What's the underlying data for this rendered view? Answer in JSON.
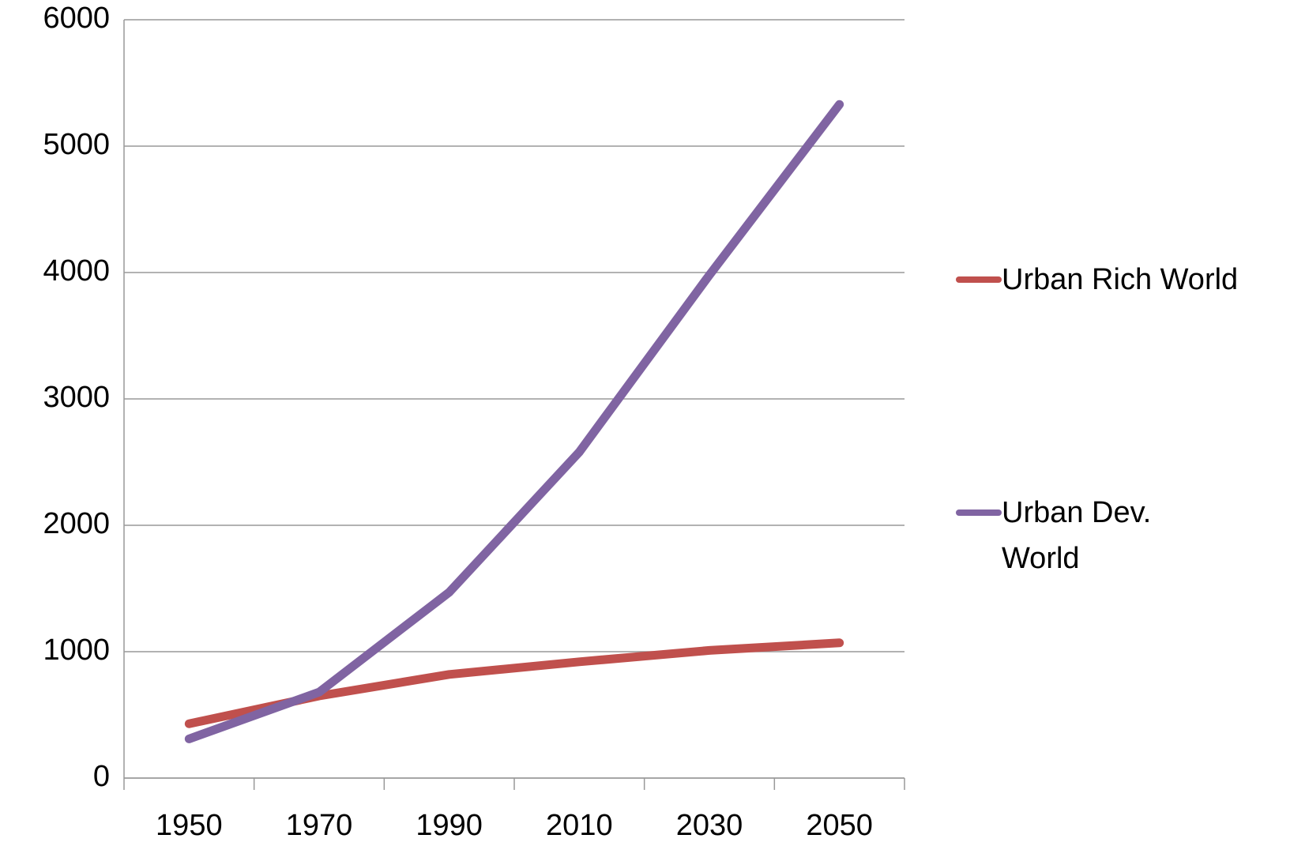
{
  "chart_data": {
    "type": "line",
    "categories": [
      "1950",
      "1970",
      "1990",
      "2010",
      "2030",
      "2050"
    ],
    "series": [
      {
        "name": "Urban Rich World",
        "color": "#c0504d",
        "values": [
          430,
          650,
          820,
          920,
          1010,
          1070
        ]
      },
      {
        "name": "Urban Dev. World",
        "color": "#8064a2",
        "values": [
          310,
          680,
          1470,
          2580,
          3980,
          5330
        ]
      }
    ],
    "ylim": [
      0,
      6000
    ],
    "yticks": [
      0,
      1000,
      2000,
      3000,
      4000,
      5000,
      6000
    ],
    "grid": true,
    "legend": "right"
  }
}
